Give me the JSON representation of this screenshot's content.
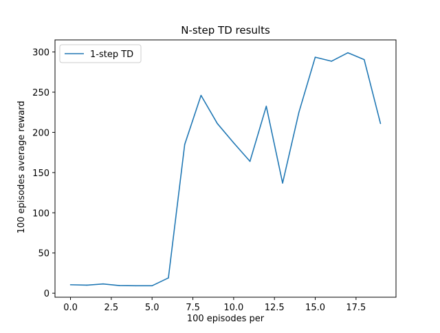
{
  "chart_data": {
    "type": "line",
    "title": "N-step TD results",
    "xlabel": "100 episodes per",
    "ylabel": "100 episodes average reward",
    "xlim": [
      -0.95,
      19.95
    ],
    "ylim": [
      -5,
      315
    ],
    "xticks": [
      0.0,
      2.5,
      5.0,
      7.5,
      10.0,
      12.5,
      15.0,
      17.5
    ],
    "xtick_labels": [
      "0.0",
      "2.5",
      "5.0",
      "7.5",
      "10.0",
      "12.5",
      "15.0",
      "17.5"
    ],
    "yticks": [
      0,
      50,
      100,
      150,
      200,
      250,
      300
    ],
    "ytick_labels": [
      "0",
      "50",
      "100",
      "150",
      "200",
      "250",
      "300"
    ],
    "grid": false,
    "legend_position": "top-left",
    "series": [
      {
        "name": "1-step TD",
        "color": "#1f77b4",
        "x": [
          0,
          1,
          2,
          3,
          4,
          5,
          6,
          7,
          8,
          9,
          10,
          11,
          12,
          13,
          14,
          15,
          16,
          17,
          18,
          19
        ],
        "y": [
          10.5,
          10,
          11.5,
          9.5,
          9.3,
          9.3,
          19,
          185,
          246,
          211,
          187,
          164,
          232.5,
          137,
          225,
          293.5,
          288.5,
          299,
          290.5,
          211
        ]
      }
    ]
  }
}
